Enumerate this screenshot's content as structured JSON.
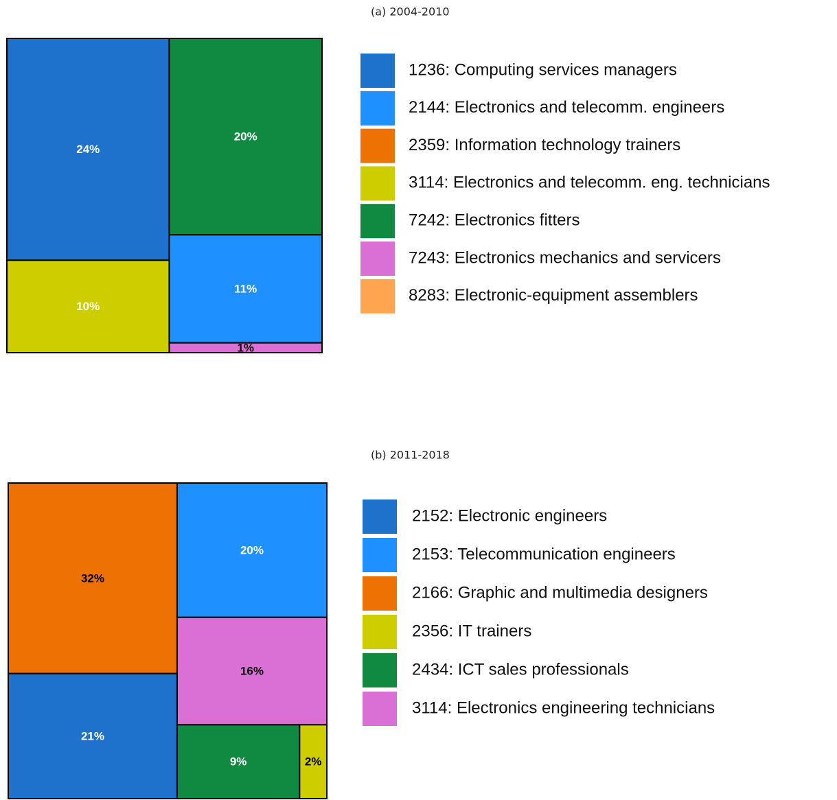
{
  "chart_data": [
    {
      "type": "treemap",
      "title": "(a) 2004-2010",
      "categories": [
        "1236: Computing services managers",
        "2144: Electronics and telecomm. engineers",
        "2359: Information technology trainers",
        "3114: Electronics and telecomm. eng. technicians",
        "7242: Electronics fitters",
        "7243: Electronics mechanics and servicers",
        "8283: Electronic-equipment assemblers"
      ],
      "colors": [
        "#1e72cc",
        "#1e90ff",
        "#ee7203",
        "#cdcd00",
        "#118a41",
        "#da70d6",
        "#ffa54f"
      ],
      "values": [
        24,
        11,
        null,
        10,
        20,
        1,
        null
      ],
      "value_labels": [
        "24%",
        "11%",
        null,
        "10%",
        "20%",
        "1%",
        null
      ]
    },
    {
      "type": "treemap",
      "title": "(b) 2011-2018",
      "categories": [
        "2152: Electronic engineers",
        "2153: Telecommunication engineers",
        "2166: Graphic and multimedia designers",
        "2356: IT trainers",
        "2434: ICT sales professionals",
        "3114: Electronics engineering technicians"
      ],
      "colors": [
        "#1e72cc",
        "#1e90ff",
        "#ee7203",
        "#cdcd00",
        "#118a41",
        "#da70d6"
      ],
      "values": [
        21,
        20,
        32,
        2,
        9,
        16
      ],
      "value_labels": [
        "21%",
        "20%",
        "32%",
        "2%",
        "9%",
        "16%"
      ]
    }
  ]
}
